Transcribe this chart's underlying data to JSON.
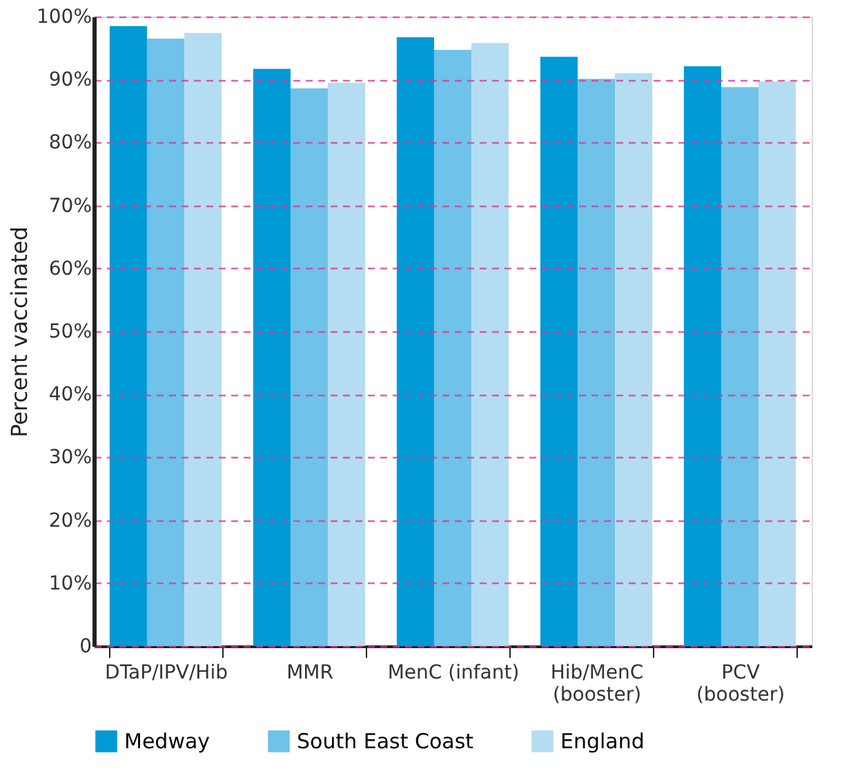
{
  "chart_data": {
    "type": "bar",
    "ylabel": "Percent vaccinated",
    "categories": [
      "DTaP/IPV/Hib",
      "MMR",
      "MenC (infant)",
      "Hib/MenC\n(booster)",
      "PCV\n(booster)"
    ],
    "series": [
      {
        "name": "Medway",
        "color": "#009ad6",
        "values": [
          98.5,
          91.7,
          96.7,
          93.6,
          92.1
        ]
      },
      {
        "name": "South East Coast",
        "color": "#6fc2e9",
        "values": [
          96.5,
          88.6,
          94.7,
          90.1,
          88.8
        ]
      },
      {
        "name": "England",
        "color": "#b5ddf2",
        "values": [
          97.4,
          89.5,
          95.8,
          91.0,
          89.7
        ]
      }
    ],
    "ylim": [
      0,
      100
    ],
    "yticks": [
      0,
      {
        "value": 10,
        "label": "10%"
      },
      {
        "value": 20,
        "label": "20%"
      },
      {
        "value": 30,
        "label": "30%"
      },
      {
        "value": 40,
        "label": "40%"
      },
      {
        "value": 50,
        "label": "50%"
      },
      {
        "value": 60,
        "label": "60%"
      },
      {
        "value": 70,
        "label": "70%"
      },
      {
        "value": 80,
        "label": "80%"
      },
      {
        "value": 90,
        "label": "90%"
      },
      {
        "value": 100,
        "label": "100%"
      }
    ],
    "grid": "y",
    "legend": "bottom"
  }
}
